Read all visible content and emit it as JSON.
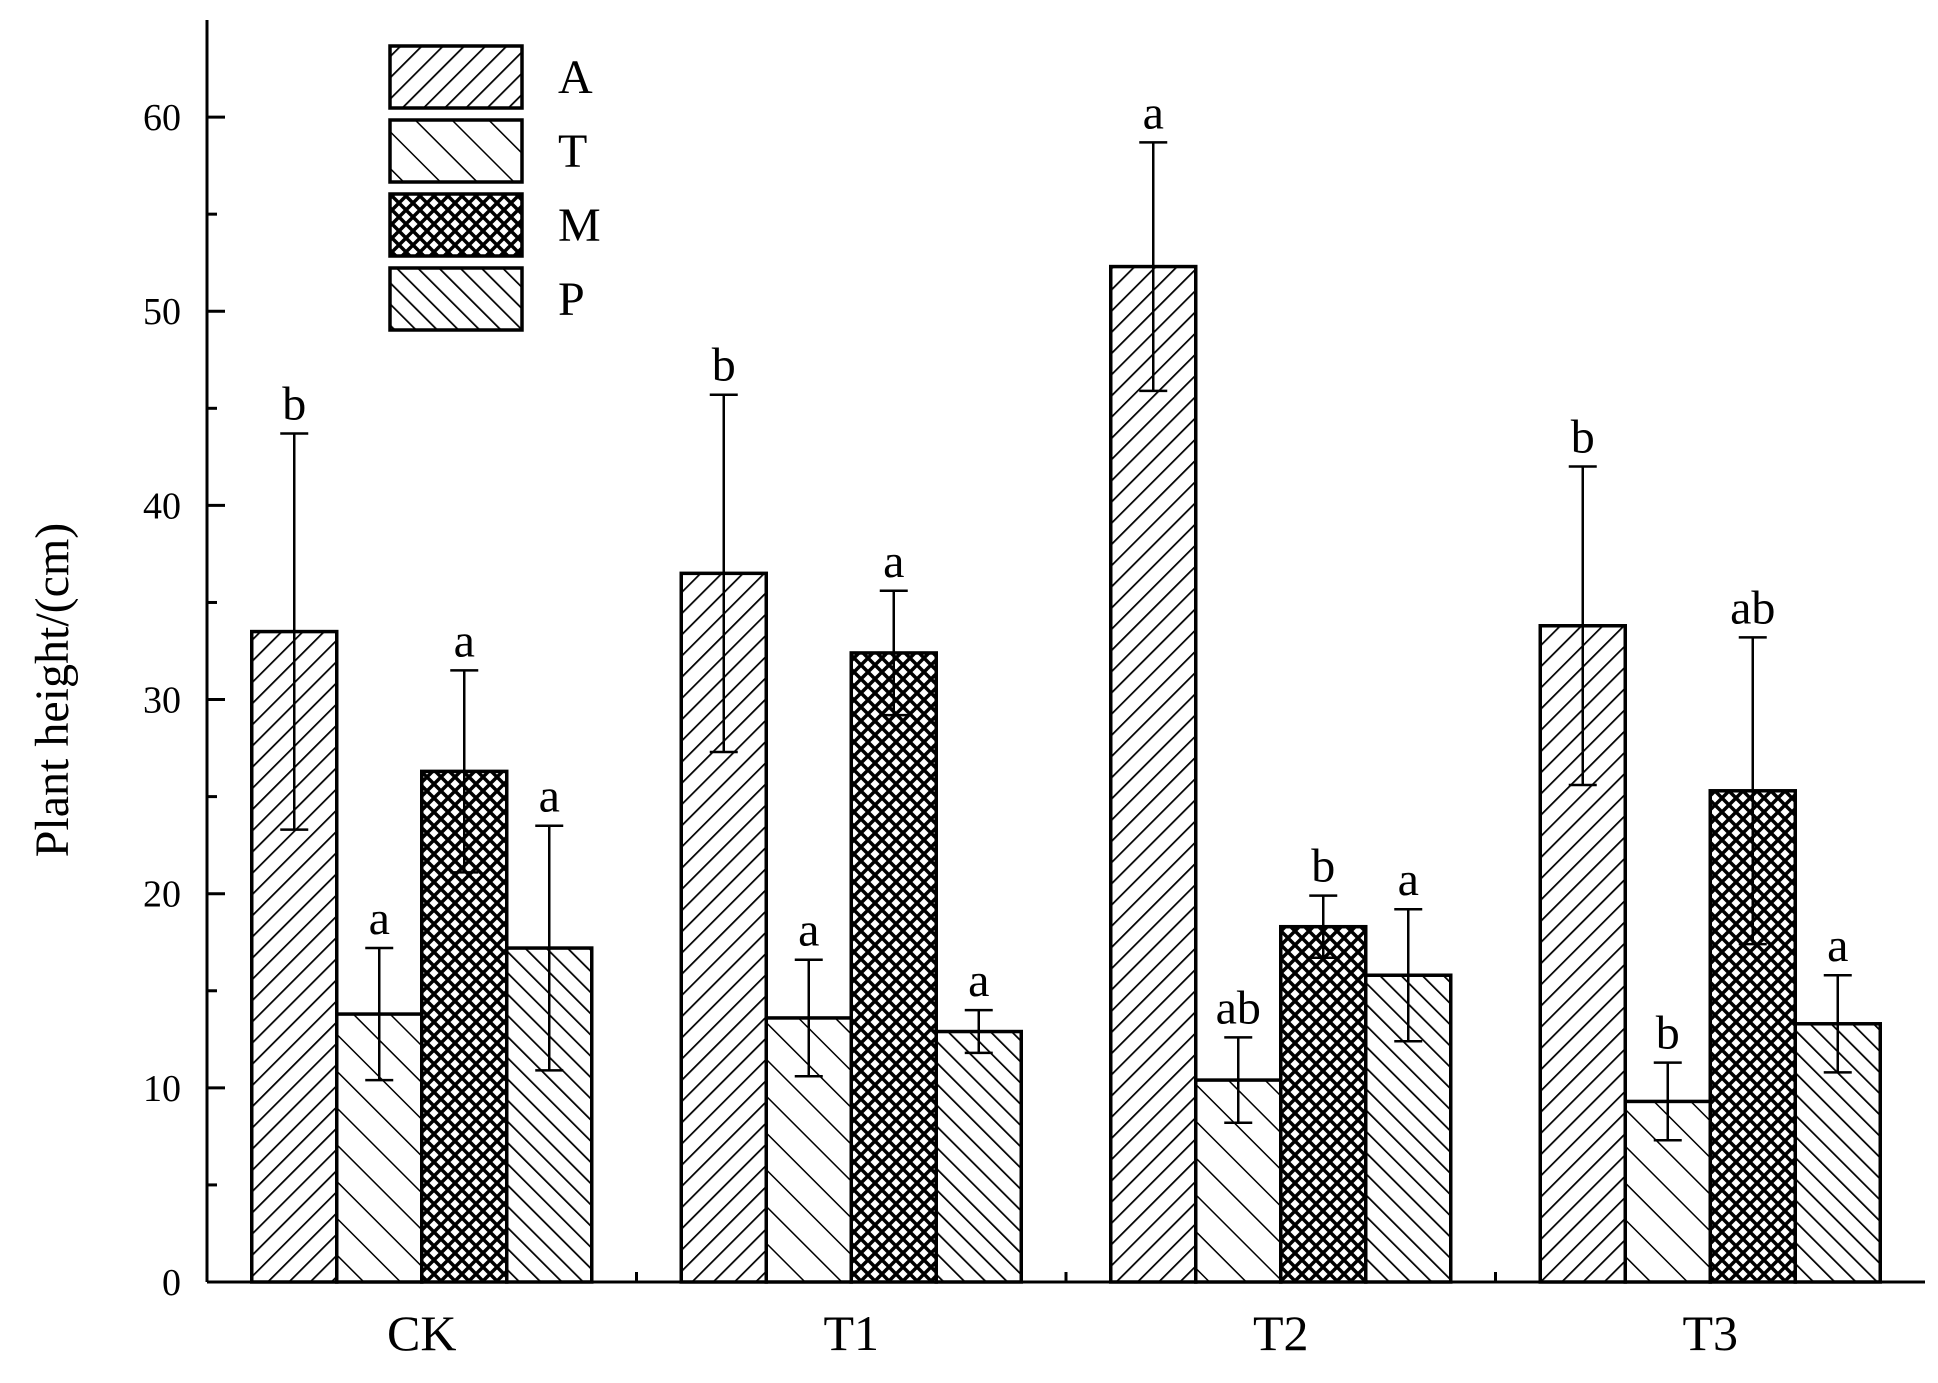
{
  "chart_data": {
    "type": "bar",
    "title": "",
    "xlabel": "",
    "ylabel": "Plant height/(cm)",
    "ylim": [
      0,
      65
    ],
    "yticks": [
      0,
      10,
      20,
      30,
      40,
      50,
      60
    ],
    "grid": false,
    "legend_position": "top-left",
    "categories": [
      "CK",
      "T1",
      "T2",
      "T3"
    ],
    "series": [
      {
        "name": "A",
        "pattern": "diagonal-forward-dense",
        "values": [
          33.5,
          36.5,
          52.3,
          33.8
        ],
        "errors": [
          10.2,
          9.2,
          6.4,
          8.2
        ],
        "letters": [
          "b",
          "b",
          "a",
          "b"
        ]
      },
      {
        "name": "T",
        "pattern": "diagonal-back-sparse",
        "values": [
          13.8,
          13.6,
          10.4,
          9.3
        ],
        "errors": [
          3.4,
          3.0,
          2.2,
          2.0
        ],
        "letters": [
          "a",
          "a",
          "ab",
          "b"
        ]
      },
      {
        "name": "M",
        "pattern": "crosshatch",
        "values": [
          26.3,
          32.4,
          18.3,
          25.3
        ],
        "errors": [
          5.2,
          3.2,
          1.6,
          7.9
        ],
        "letters": [
          "a",
          "a",
          "b",
          "ab"
        ]
      },
      {
        "name": "P",
        "pattern": "diagonal-back-dense",
        "values": [
          17.2,
          12.9,
          15.8,
          13.3
        ],
        "errors": [
          6.3,
          1.1,
          3.4,
          2.5
        ],
        "letters": [
          "a",
          "a",
          "a",
          "a"
        ]
      }
    ]
  }
}
